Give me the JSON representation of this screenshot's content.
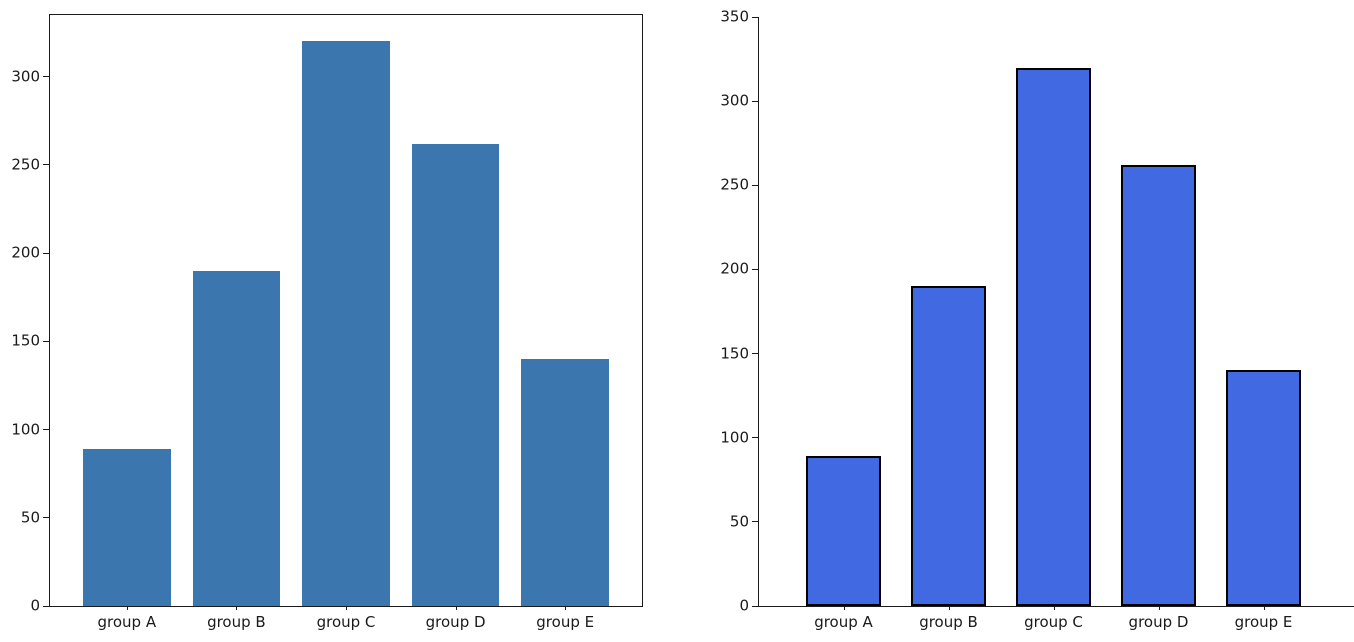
{
  "figure": {
    "background_color": "#ffffff",
    "text_color": "#1a1a1a"
  },
  "chart_data": [
    {
      "id": "left_chart",
      "type": "bar",
      "title": "",
      "xlabel": "",
      "ylabel": "",
      "categories": [
        "group A",
        "group B",
        "group C",
        "group D",
        "group E"
      ],
      "values": [
        89,
        190,
        320,
        262,
        140
      ],
      "bar_color": "#3b76af",
      "bar_edge_color": "none",
      "bar_edge_width": 0,
      "yticks": [
        0,
        50,
        100,
        150,
        200,
        250,
        300
      ],
      "ylim": [
        0,
        335
      ],
      "spines": "full-box",
      "grid": false,
      "legend": "none"
    },
    {
      "id": "right_chart",
      "type": "bar",
      "title": "",
      "xlabel": "",
      "ylabel": "",
      "categories": [
        "group A",
        "group B",
        "group C",
        "group D",
        "group E"
      ],
      "values": [
        89,
        190,
        320,
        262,
        140
      ],
      "bar_color": "#4169e1",
      "bar_edge_color": "#000000",
      "bar_edge_width": 2,
      "yticks": [
        0,
        50,
        100,
        150,
        200,
        250,
        300,
        350
      ],
      "ylim": [
        0,
        350
      ],
      "spines": "left-bottom",
      "grid": false,
      "legend": "none"
    }
  ]
}
